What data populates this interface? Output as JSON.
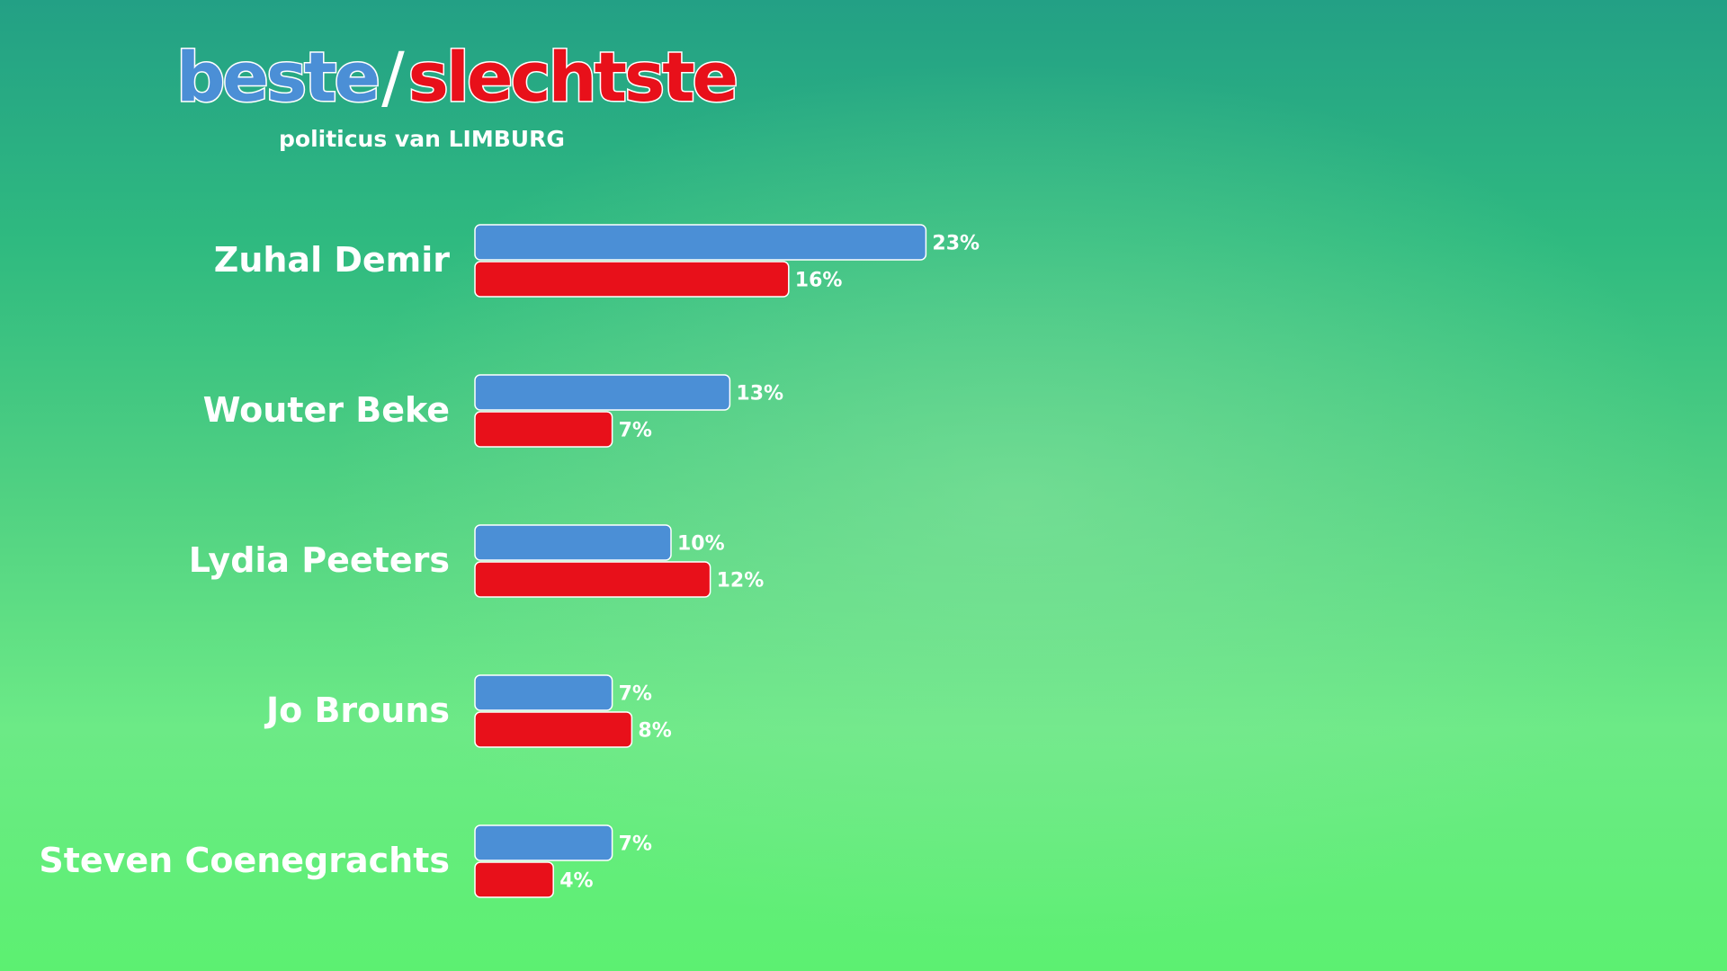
{
  "header": {
    "title_best": "beste",
    "title_slash": "/",
    "title_worst": "slechtste",
    "subtitle": "politicus van LIMBURG"
  },
  "colors": {
    "best": "#4b8fd6",
    "worst": "#e8101a",
    "text": "#ffffff"
  },
  "chart_data": {
    "type": "bar",
    "orientation": "horizontal",
    "title": "beste/slechtste",
    "subtitle": "politicus van LIMBURG",
    "categories": [
      "Zuhal Demir",
      "Wouter Beke",
      "Lydia Peeters",
      "Jo Brouns",
      "Steven Coenegrachts"
    ],
    "series": [
      {
        "name": "beste",
        "color": "#4b8fd6",
        "values": [
          23,
          13,
          10,
          7,
          7
        ],
        "labels": [
          "23%",
          "13%",
          "10%",
          "7%",
          "7%"
        ]
      },
      {
        "name": "slechtste",
        "color": "#e8101a",
        "values": [
          16,
          7,
          12,
          8,
          4
        ],
        "labels": [
          "16%",
          "7%",
          "12%",
          "8%",
          "4%"
        ]
      }
    ],
    "unit": "%",
    "grid": false
  }
}
